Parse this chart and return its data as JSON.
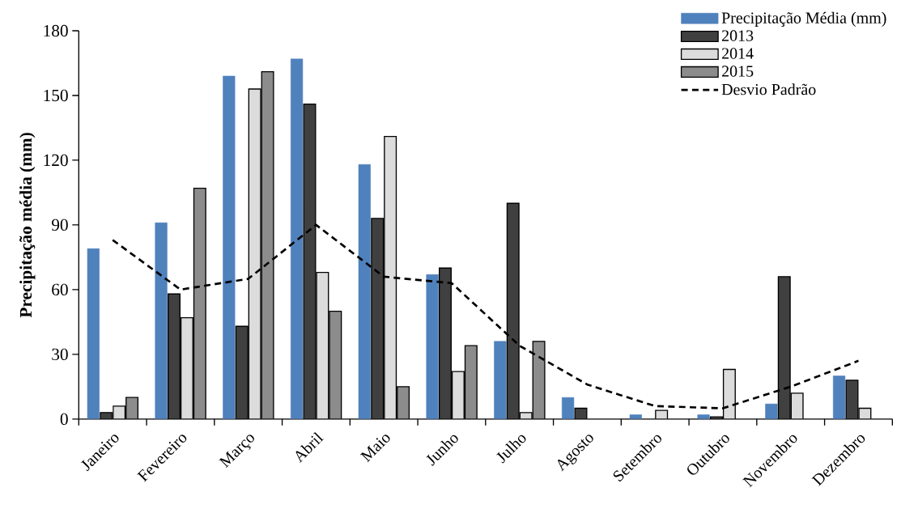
{
  "chart_data": {
    "type": "bar",
    "ylabel": "Precipitação média (mm)",
    "categories": [
      "Janeiro",
      "Fevereiro",
      "Março",
      "Abril",
      "Maio",
      "Junho",
      "Julho",
      "Agosto",
      "Setembro",
      "Outubro",
      "Novembro",
      "Dezembro"
    ],
    "series": [
      {
        "name": "Precipitação Média (mm)",
        "color": "#4f81bd",
        "values": [
          79,
          91,
          159,
          167,
          118,
          67,
          36,
          10,
          2,
          2,
          7,
          20
        ]
      },
      {
        "name": "2013",
        "color": "#404040",
        "values": [
          3,
          58,
          43,
          146,
          93,
          70,
          100,
          5,
          null,
          1,
          66,
          18
        ]
      },
      {
        "name": "2014",
        "color": "#dcdcdc",
        "values": [
          6,
          47,
          153,
          68,
          131,
          22,
          3,
          null,
          4,
          23,
          12,
          5
        ]
      },
      {
        "name": "2015",
        "color": "#8c8c8c",
        "values": [
          10,
          107,
          161,
          50,
          15,
          34,
          36,
          null,
          null,
          null,
          null,
          null
        ]
      },
      {
        "name": "Desvio Padrão",
        "type": "line",
        "line_style": "dashed",
        "color": "#000000",
        "values": [
          83,
          60,
          65,
          90,
          66,
          63,
          34,
          16,
          6,
          5,
          15,
          27
        ]
      }
    ],
    "ylim": [
      0,
      180
    ],
    "yticks": [
      0,
      30,
      60,
      90,
      120,
      150,
      180
    ],
    "grid": false,
    "legend": "top right"
  }
}
